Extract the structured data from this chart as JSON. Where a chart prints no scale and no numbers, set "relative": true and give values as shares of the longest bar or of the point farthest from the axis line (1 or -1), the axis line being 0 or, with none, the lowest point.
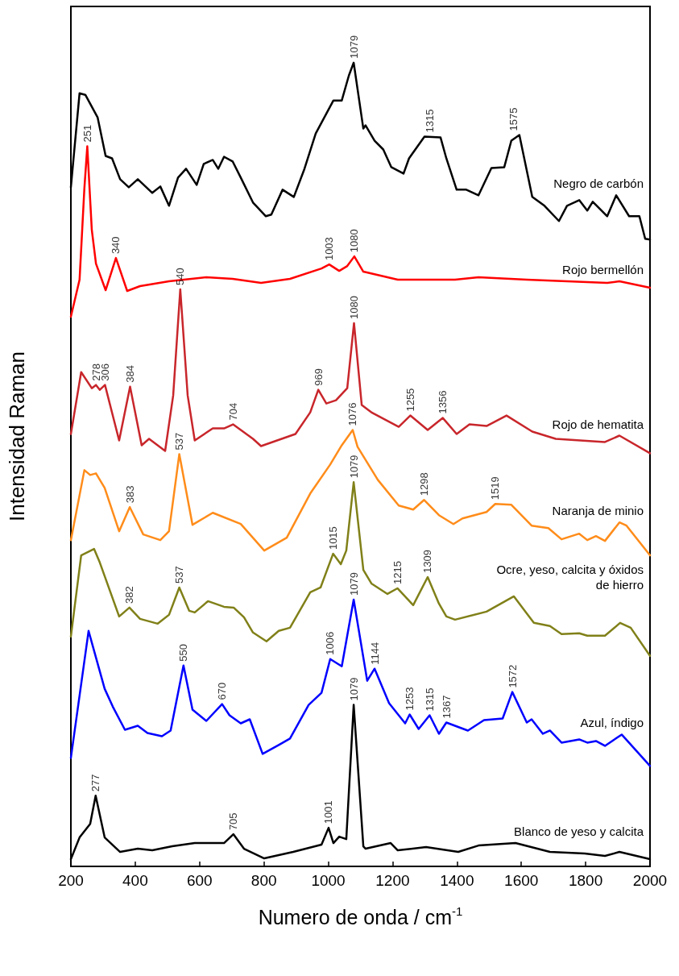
{
  "chart_data": {
    "type": "line",
    "relative": true,
    "xlabel": "Numero de onda / cm$^{-1}$",
    "ylabel": "Intensidad Raman",
    "xlim": [
      200,
      2000
    ],
    "xticks": [
      200,
      400,
      600,
      800,
      1000,
      1200,
      1400,
      1600,
      1800,
      2000
    ],
    "series": [
      {
        "name": "Negro de carbón",
        "color": "#000000",
        "x": [
          200,
          227,
          245,
          283,
          308,
          328,
          353,
          380,
          408,
          453,
          478,
          505,
          533,
          558,
          591,
          613,
          641,
          658,
          676,
          703,
          728,
          766,
          806,
          823,
          858,
          893,
          926,
          961,
          1016,
          1042,
          1064,
          1079,
          1109,
          1116,
          1144,
          1171,
          1196,
          1234,
          1251,
          1299,
          1349,
          1367,
          1399,
          1429,
          1467,
          1507,
          1547,
          1569,
          1594,
          1634,
          1672,
          1717,
          1742,
          1780,
          1805,
          1822,
          1867,
          1895,
          1935,
          1967,
          1985,
          2000
        ],
        "values": [
          0.845,
          0.962,
          0.96,
          0.932,
          0.884,
          0.881,
          0.855,
          0.845,
          0.855,
          0.838,
          0.846,
          0.822,
          0.857,
          0.868,
          0.848,
          0.874,
          0.879,
          0.868,
          0.883,
          0.877,
          0.857,
          0.826,
          0.809,
          0.811,
          0.842,
          0.833,
          0.868,
          0.912,
          0.953,
          0.953,
          0.984,
          1.0,
          0.918,
          0.922,
          0.903,
          0.892,
          0.87,
          0.862,
          0.881,
          0.908,
          0.907,
          0.881,
          0.842,
          0.842,
          0.835,
          0.869,
          0.87,
          0.903,
          0.91,
          0.833,
          0.822,
          0.803,
          0.822,
          0.829,
          0.816,
          0.827,
          0.809,
          0.835,
          0.809,
          0.809,
          0.781,
          0.78
        ]
      },
      {
        "name": "Rojo bermellón",
        "color": "#ff0000",
        "x": [
          200,
          227,
          242,
          251,
          265,
          278,
          308,
          340,
          375,
          415,
          505,
          621,
          703,
          791,
          881,
          979,
          1003,
          1034,
          1059,
          1081,
          1109,
          1216,
          1394,
          1467,
          1617,
          1867,
          1905,
          2000
        ],
        "values": [
          0.684,
          0.73,
          0.844,
          0.896,
          0.792,
          0.75,
          0.717,
          0.757,
          0.716,
          0.722,
          0.728,
          0.733,
          0.731,
          0.726,
          0.731,
          0.744,
          0.749,
          0.741,
          0.747,
          0.759,
          0.74,
          0.73,
          0.73,
          0.733,
          0.73,
          0.726,
          0.728,
          0.72
        ]
      },
      {
        "name": "Rojo de hematita",
        "color": "#c8262b",
        "x": [
          200,
          232,
          265,
          278,
          290,
          306,
          350,
          384,
          420,
          443,
          493,
          518,
          540,
          563,
          585,
          641,
          676,
          704,
          766,
          791,
          898,
          944,
          969,
          994,
          1024,
          1059,
          1080,
          1104,
          1134,
          1219,
          1255,
          1309,
          1356,
          1399,
          1439,
          1492,
          1554,
          1634,
          1707,
          1860,
          1905,
          2000
        ],
        "values": [
          0.538,
          0.615,
          0.595,
          0.599,
          0.593,
          0.599,
          0.53,
          0.597,
          0.524,
          0.532,
          0.517,
          0.586,
          0.718,
          0.586,
          0.53,
          0.545,
          0.545,
          0.55,
          0.532,
          0.523,
          0.538,
          0.565,
          0.593,
          0.576,
          0.58,
          0.595,
          0.676,
          0.574,
          0.565,
          0.547,
          0.561,
          0.543,
          0.558,
          0.538,
          0.55,
          0.548,
          0.561,
          0.541,
          0.532,
          0.528,
          0.536,
          0.514
        ]
      },
      {
        "name": "Naranja de minio",
        "color": "#ff8c1a",
        "x": [
          200,
          242,
          260,
          278,
          305,
          350,
          383,
          425,
          478,
          505,
          537,
          578,
          641,
          728,
          801,
          871,
          944,
          1006,
          1042,
          1076,
          1091,
          1154,
          1219,
          1264,
          1298,
          1344,
          1389,
          1417,
          1492,
          1519,
          1569,
          1632,
          1684,
          1725,
          1780,
          1805,
          1832,
          1860,
          1905,
          1927,
          2000
        ],
        "values": [
          0.406,
          0.493,
          0.487,
          0.489,
          0.471,
          0.417,
          0.447,
          0.413,
          0.406,
          0.417,
          0.513,
          0.425,
          0.44,
          0.426,
          0.393,
          0.409,
          0.464,
          0.5,
          0.524,
          0.543,
          0.522,
          0.481,
          0.449,
          0.444,
          0.456,
          0.437,
          0.426,
          0.433,
          0.441,
          0.451,
          0.45,
          0.424,
          0.421,
          0.407,
          0.414,
          0.406,
          0.411,
          0.405,
          0.428,
          0.424,
          0.387
        ]
      },
      {
        "name": "Ocre, yeso, calcita y óxidos de hierro",
        "color": "#808019",
        "x": [
          200,
          232,
          272,
          290,
          350,
          382,
          415,
          470,
          505,
          537,
          568,
          585,
          626,
          676,
          706,
          738,
          766,
          808,
          846,
          881,
          944,
          976,
          1015,
          1039,
          1056,
          1079,
          1109,
          1134,
          1184,
          1215,
          1264,
          1309,
          1344,
          1367,
          1394,
          1492,
          1577,
          1639,
          1689,
          1725,
          1780,
          1805,
          1860,
          1907,
          1940,
          2000
        ],
        "values": [
          0.286,
          0.387,
          0.395,
          0.378,
          0.311,
          0.322,
          0.308,
          0.302,
          0.313,
          0.347,
          0.318,
          0.316,
          0.33,
          0.323,
          0.322,
          0.31,
          0.291,
          0.28,
          0.293,
          0.297,
          0.341,
          0.347,
          0.389,
          0.376,
          0.393,
          0.478,
          0.369,
          0.352,
          0.339,
          0.346,
          0.325,
          0.36,
          0.327,
          0.311,
          0.307,
          0.317,
          0.336,
          0.303,
          0.299,
          0.289,
          0.29,
          0.287,
          0.287,
          0.303,
          0.297,
          0.262
        ]
      },
      {
        "name": "Azul, índigo",
        "color": "#0000ff",
        "x": [
          200,
          255,
          305,
          330,
          368,
          408,
          438,
          483,
          510,
          550,
          578,
          621,
          670,
          693,
          728,
          756,
          796,
          846,
          881,
          939,
          979,
          1006,
          1042,
          1079,
          1121,
          1144,
          1189,
          1239,
          1253,
          1281,
          1315,
          1344,
          1367,
          1434,
          1484,
          1542,
          1572,
          1617,
          1632,
          1667,
          1689,
          1725,
          1780,
          1805,
          1832,
          1860,
          1912,
          2000
        ],
        "values": [
          0.135,
          0.293,
          0.221,
          0.199,
          0.17,
          0.175,
          0.166,
          0.162,
          0.169,
          0.25,
          0.195,
          0.181,
          0.202,
          0.188,
          0.178,
          0.183,
          0.14,
          0.151,
          0.159,
          0.201,
          0.216,
          0.258,
          0.249,
          0.332,
          0.231,
          0.246,
          0.203,
          0.178,
          0.189,
          0.171,
          0.188,
          0.165,
          0.179,
          0.169,
          0.182,
          0.184,
          0.217,
          0.179,
          0.183,
          0.165,
          0.169,
          0.154,
          0.158,
          0.154,
          0.156,
          0.15,
          0.164,
          0.125
        ]
      },
      {
        "name": "Blanco de yeso y calcita",
        "color": "#000000",
        "x": [
          200,
          227,
          260,
          277,
          305,
          353,
          408,
          453,
          515,
          585,
          676,
          705,
          738,
          801,
          891,
          979,
          1001,
          1016,
          1034,
          1056,
          1079,
          1109,
          1116,
          1194,
          1216,
          1304,
          1404,
          1467,
          1582,
          1689,
          1797,
          1860,
          1905,
          2000
        ],
        "values": [
          0.009,
          0.036,
          0.053,
          0.088,
          0.036,
          0.018,
          0.022,
          0.02,
          0.025,
          0.029,
          0.029,
          0.04,
          0.022,
          0.01,
          0.018,
          0.027,
          0.048,
          0.029,
          0.037,
          0.034,
          0.201,
          0.025,
          0.022,
          0.029,
          0.02,
          0.024,
          0.018,
          0.026,
          0.029,
          0.018,
          0.016,
          0.013,
          0.018,
          0.009
        ]
      }
    ],
    "annotations": [
      {
        "text": "1079",
        "x": 1079,
        "y": 1.0
      },
      {
        "text": "1315",
        "x": 1315,
        "y": 0.908
      },
      {
        "text": "1575",
        "x": 1575,
        "y": 0.91
      },
      {
        "text": "251",
        "x": 251,
        "y": 0.896
      },
      {
        "text": "340",
        "x": 340,
        "y": 0.757
      },
      {
        "text": "1003",
        "x": 1003,
        "y": 0.749
      },
      {
        "text": "1080",
        "x": 1080,
        "y": 0.759
      },
      {
        "text": "278",
        "x": 278,
        "y": 0.599
      },
      {
        "text": "306",
        "x": 306,
        "y": 0.599
      },
      {
        "text": "384",
        "x": 384,
        "y": 0.597
      },
      {
        "text": "540",
        "x": 540,
        "y": 0.718
      },
      {
        "text": "704",
        "x": 704,
        "y": 0.55
      },
      {
        "text": "969",
        "x": 969,
        "y": 0.593
      },
      {
        "text": "1080",
        "x": 1080,
        "y": 0.676
      },
      {
        "text": "1255",
        "x": 1255,
        "y": 0.561
      },
      {
        "text": "1356",
        "x": 1356,
        "y": 0.558
      },
      {
        "text": "383",
        "x": 383,
        "y": 0.447
      },
      {
        "text": "537",
        "x": 537,
        "y": 0.513
      },
      {
        "text": "1076",
        "x": 1076,
        "y": 0.543
      },
      {
        "text": "1298",
        "x": 1298,
        "y": 0.456
      },
      {
        "text": "1519",
        "x": 1519,
        "y": 0.451
      },
      {
        "text": "382",
        "x": 382,
        "y": 0.322
      },
      {
        "text": "537",
        "x": 537,
        "y": 0.347
      },
      {
        "text": "1015",
        "x": 1015,
        "y": 0.389
      },
      {
        "text": "1079",
        "x": 1079,
        "y": 0.478
      },
      {
        "text": "1215",
        "x": 1215,
        "y": 0.346
      },
      {
        "text": "1309",
        "x": 1309,
        "y": 0.36
      },
      {
        "text": "550",
        "x": 550,
        "y": 0.25
      },
      {
        "text": "670",
        "x": 670,
        "y": 0.202
      },
      {
        "text": "1006",
        "x": 1006,
        "y": 0.258
      },
      {
        "text": "1079",
        "x": 1079,
        "y": 0.332
      },
      {
        "text": "1144",
        "x": 1144,
        "y": 0.246
      },
      {
        "text": "1253",
        "x": 1253,
        "y": 0.189
      },
      {
        "text": "1315",
        "x": 1315,
        "y": 0.188
      },
      {
        "text": "1367",
        "x": 1367,
        "y": 0.179
      },
      {
        "text": "1572",
        "x": 1572,
        "y": 0.217
      },
      {
        "text": "277",
        "x": 277,
        "y": 0.088
      },
      {
        "text": "705",
        "x": 705,
        "y": 0.04
      },
      {
        "text": "1001",
        "x": 1001,
        "y": 0.048
      },
      {
        "text": "1079",
        "x": 1079,
        "y": 0.201
      }
    ]
  }
}
